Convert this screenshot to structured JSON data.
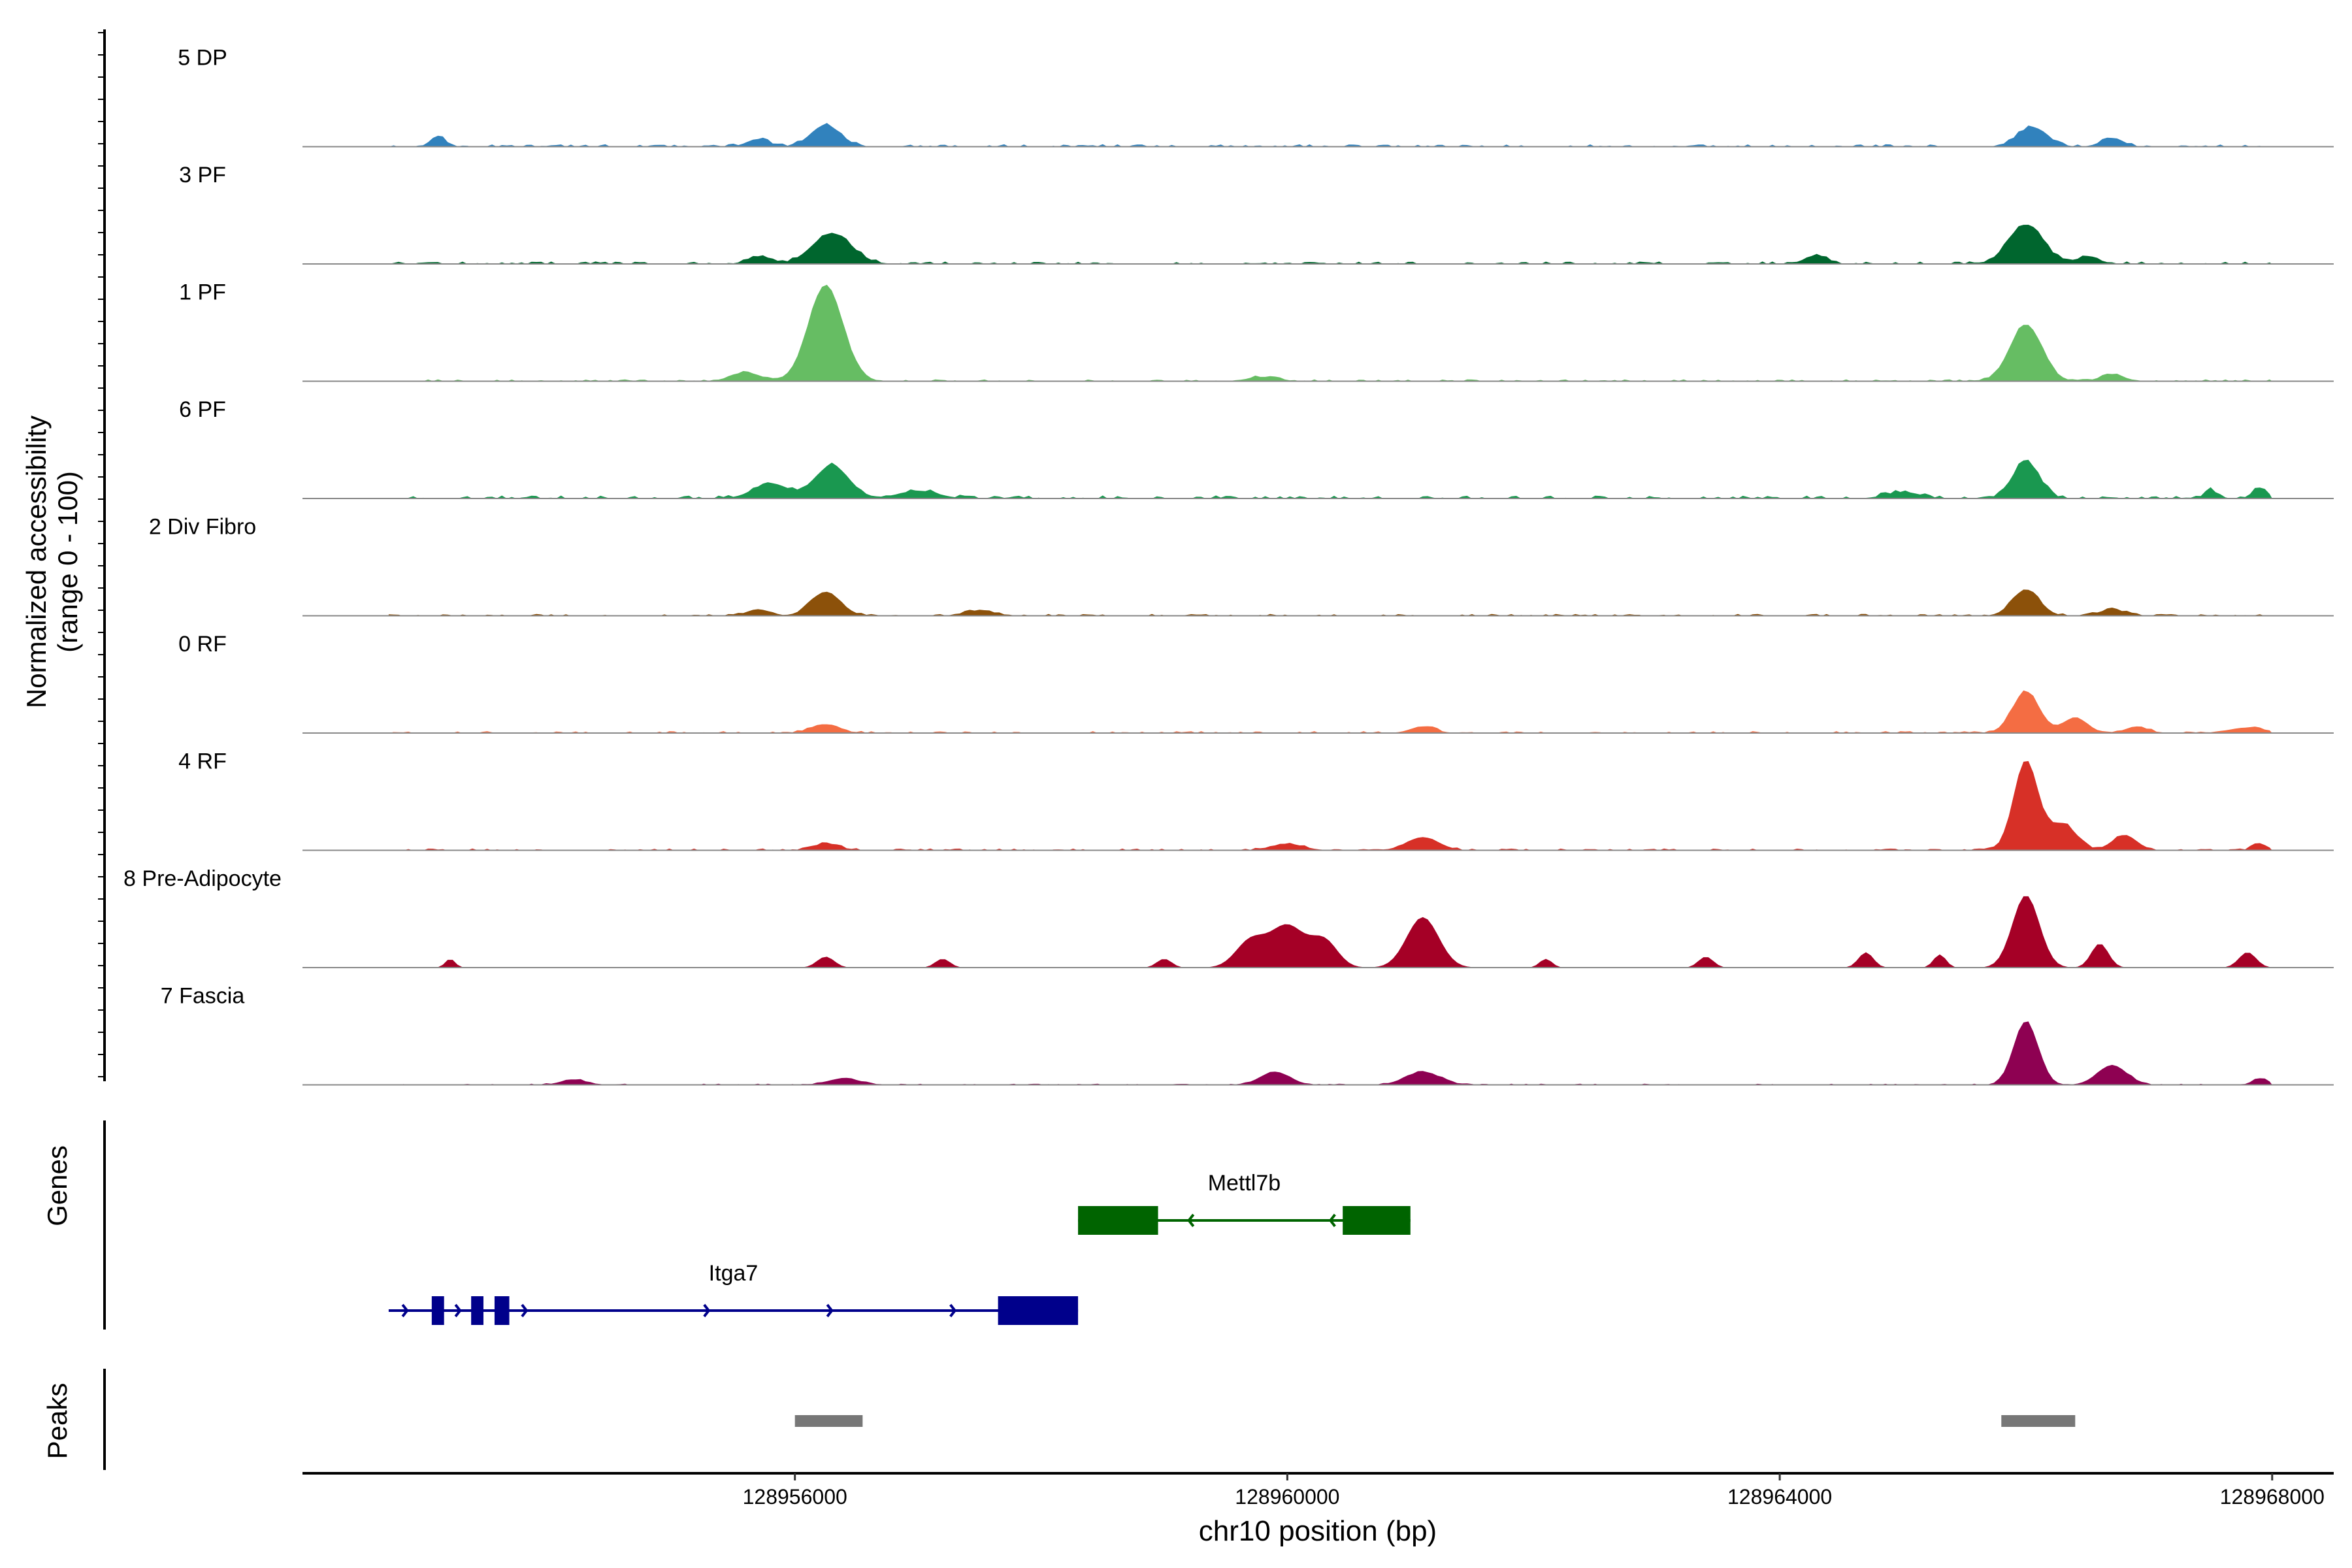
{
  "chart_data": {
    "type": "area",
    "yaxis_label_line1": "Normalized accessibility",
    "yaxis_label_line2": "(range 0 - 100)",
    "xlabel": "chr10 position (bp)",
    "xlim": [
      128952000,
      128968500
    ],
    "xticks": [
      128956000,
      128960000,
      128964000,
      128968000
    ],
    "xtick_labels": [
      "128956000",
      "128960000",
      "128964000",
      "128968000"
    ],
    "ylim": [
      0,
      100
    ],
    "signal_start": 128952700,
    "signal_end": 128968000,
    "tracks": [
      {
        "name": "5 DP",
        "color": "#3182BD",
        "base": 4,
        "peaks": [
          {
            "x": 128956250,
            "h": 20,
            "w": 120
          },
          {
            "x": 128966050,
            "h": 18,
            "w": 120
          },
          {
            "x": 128966700,
            "h": 8,
            "w": 90
          },
          {
            "x": 128953100,
            "h": 10,
            "w": 60
          },
          {
            "x": 128955700,
            "h": 7,
            "w": 90
          }
        ]
      },
      {
        "name": "3 PF",
        "color": "#00662E",
        "base": 4,
        "peaks": [
          {
            "x": 128956300,
            "h": 28,
            "w": 160
          },
          {
            "x": 128966000,
            "h": 36,
            "w": 140
          },
          {
            "x": 128964300,
            "h": 8,
            "w": 90
          },
          {
            "x": 128955700,
            "h": 7,
            "w": 90
          },
          {
            "x": 128966500,
            "h": 6,
            "w": 100
          }
        ]
      },
      {
        "name": "1 PF",
        "color": "#66BD63",
        "base": 3,
        "peaks": [
          {
            "x": 128956250,
            "h": 88,
            "w": 140
          },
          {
            "x": 128966000,
            "h": 52,
            "w": 130
          },
          {
            "x": 128955600,
            "h": 8,
            "w": 120
          },
          {
            "x": 128966700,
            "h": 6,
            "w": 100
          },
          {
            "x": 128959800,
            "h": 4,
            "w": 120
          }
        ]
      },
      {
        "name": "6 PF",
        "color": "#1A9850",
        "base": 5,
        "peaks": [
          {
            "x": 128956300,
            "h": 30,
            "w": 140
          },
          {
            "x": 128955800,
            "h": 14,
            "w": 140
          },
          {
            "x": 128966000,
            "h": 34,
            "w": 110
          },
          {
            "x": 128957000,
            "h": 7,
            "w": 160
          },
          {
            "x": 128967900,
            "h": 10,
            "w": 60
          },
          {
            "x": 128965000,
            "h": 6,
            "w": 140
          },
          {
            "x": 128967500,
            "h": 8,
            "w": 50
          }
        ]
      },
      {
        "name": "2 Div Fibro",
        "color": "#8C510A",
        "base": 3,
        "peaks": [
          {
            "x": 128956250,
            "h": 22,
            "w": 120
          },
          {
            "x": 128966000,
            "h": 24,
            "w": 110
          },
          {
            "x": 128955700,
            "h": 6,
            "w": 90
          },
          {
            "x": 128957500,
            "h": 5,
            "w": 120
          },
          {
            "x": 128966700,
            "h": 6,
            "w": 100
          }
        ]
      },
      {
        "name": "0 RF",
        "color": "#F46D43",
        "base": 3,
        "peaks": [
          {
            "x": 128966000,
            "h": 38,
            "w": 110
          },
          {
            "x": 128966400,
            "h": 14,
            "w": 100
          },
          {
            "x": 128956250,
            "h": 8,
            "w": 110
          },
          {
            "x": 128961100,
            "h": 6,
            "w": 100
          },
          {
            "x": 128967800,
            "h": 5,
            "w": 150
          },
          {
            "x": 128966900,
            "h": 6,
            "w": 90
          }
        ]
      },
      {
        "name": "4 RF",
        "color": "#D73027",
        "base": 3,
        "peaks": [
          {
            "x": 128966000,
            "h": 82,
            "w": 100
          },
          {
            "x": 128966300,
            "h": 24,
            "w": 110
          },
          {
            "x": 128966800,
            "h": 14,
            "w": 100
          },
          {
            "x": 128961100,
            "h": 12,
            "w": 130
          },
          {
            "x": 128960000,
            "h": 6,
            "w": 130
          },
          {
            "x": 128956250,
            "h": 6,
            "w": 110
          },
          {
            "x": 128967900,
            "h": 6,
            "w": 60
          }
        ]
      },
      {
        "name": "8 Pre-Adipocyte",
        "color": "#A50026",
        "base": 0,
        "peaks": [
          {
            "x": 128960000,
            "h": 38,
            "w": 140
          },
          {
            "x": 128959700,
            "h": 24,
            "w": 120
          },
          {
            "x": 128960300,
            "h": 24,
            "w": 110
          },
          {
            "x": 128961100,
            "h": 46,
            "w": 130
          },
          {
            "x": 128966000,
            "h": 66,
            "w": 110
          },
          {
            "x": 128966600,
            "h": 22,
            "w": 70
          },
          {
            "x": 128953200,
            "h": 8,
            "w": 40
          },
          {
            "x": 128956250,
            "h": 10,
            "w": 70
          },
          {
            "x": 128957200,
            "h": 8,
            "w": 60
          },
          {
            "x": 128962100,
            "h": 8,
            "w": 50
          },
          {
            "x": 128963400,
            "h": 10,
            "w": 60
          },
          {
            "x": 128964700,
            "h": 14,
            "w": 60
          },
          {
            "x": 128965300,
            "h": 12,
            "w": 50
          },
          {
            "x": 128967800,
            "h": 14,
            "w": 70
          },
          {
            "x": 128959000,
            "h": 8,
            "w": 60
          }
        ]
      },
      {
        "name": "7 Fascia",
        "color": "#8E0152",
        "base": 2,
        "peaks": [
          {
            "x": 128966000,
            "h": 58,
            "w": 100
          },
          {
            "x": 128966700,
            "h": 18,
            "w": 120
          },
          {
            "x": 128959900,
            "h": 12,
            "w": 120
          },
          {
            "x": 128961100,
            "h": 12,
            "w": 140
          },
          {
            "x": 128956400,
            "h": 6,
            "w": 130
          },
          {
            "x": 128954200,
            "h": 5,
            "w": 100
          },
          {
            "x": 128967900,
            "h": 6,
            "w": 60
          }
        ]
      }
    ],
    "genes": {
      "label": "Genes",
      "items": [
        {
          "name": "Mettl7b",
          "color": "#006400",
          "strand": "-",
          "start": 128958300,
          "end": 128961000,
          "exons": [
            [
              128958300,
              128958950
            ],
            [
              128960450,
              128961000
            ]
          ],
          "arrows": [
            128959200,
            128960350
          ]
        },
        {
          "name": "Itga7",
          "color": "#00008B",
          "strand": "+",
          "start": 128952700,
          "end": 128958300,
          "exons": [
            [
              128953050,
              128953150
            ],
            [
              128953370,
              128953470
            ],
            [
              128953560,
              128953680
            ],
            [
              128957650,
              128958300
            ]
          ],
          "arrows": [
            128952850,
            128953280,
            128953820,
            128955300,
            128956300,
            128957300
          ]
        }
      ]
    },
    "peaks_track": {
      "label": "Peaks",
      "color": "#777777",
      "regions": [
        [
          128956000,
          128956550
        ],
        [
          128965800,
          128966400
        ]
      ]
    }
  }
}
